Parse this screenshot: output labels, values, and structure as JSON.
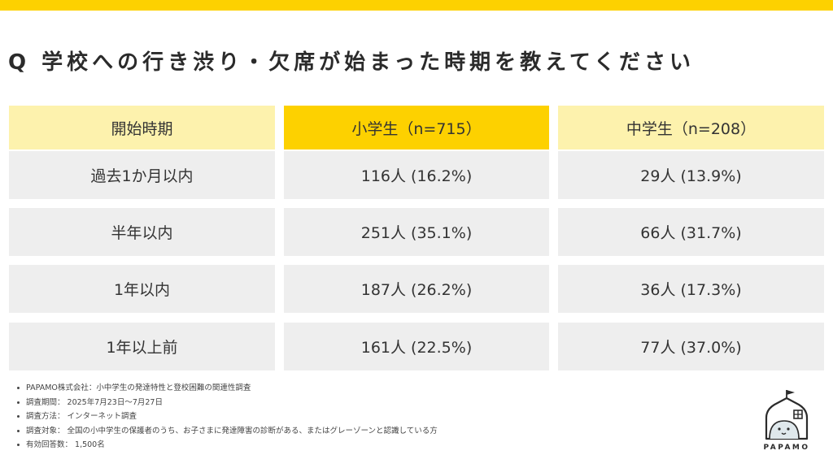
{
  "title": "Q 学校への行き渋り・欠席が始まった時期を教えてください",
  "table": {
    "headers": [
      "開始時期",
      "小学生（n=715）",
      "中学生（n=208）"
    ],
    "rows": [
      {
        "label": "過去1か月以内",
        "elementary": "116人 (16.2%)",
        "junior_high": "29人 (13.9%)"
      },
      {
        "label": "半年以内",
        "elementary": "251人 (35.1%)",
        "junior_high": "66人 (31.7%)"
      },
      {
        "label": "1年以内",
        "elementary": "187人 (26.2%)",
        "junior_high": "36人 (17.3%)"
      },
      {
        "label": "1年以上前",
        "elementary": "161人 (22.5%)",
        "junior_high": "77人 (37.0%)"
      }
    ]
  },
  "notes": [
    "PAPAMO株式会社：小中学生の発達特性と登校困難の関連性調査",
    "調査期間： 2025年7月23日～7月27日",
    "調査方法： インターネット調査",
    "調査対象： 全国の小中学生の保護者のうち、お子さまに発達障害の診断がある、またはグレーゾーンと認識している方",
    "有効回答数： 1,500名"
  ],
  "logo": {
    "text": "PAPAMO",
    "icon": "house-face-icon"
  },
  "colors": {
    "accent": "#fdd100",
    "header_light": "#fdf2ad",
    "row_bg": "#eeeeee",
    "text": "#333333"
  }
}
